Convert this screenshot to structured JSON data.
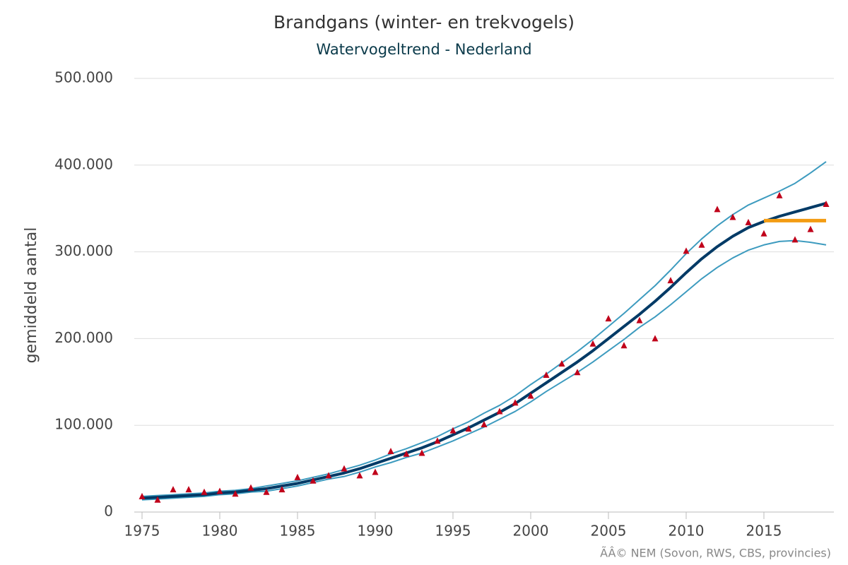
{
  "chart_data": {
    "type": "line",
    "title": "Brandgans (winter- en trekvogels)",
    "subtitle": "Watervogeltrend - Nederland",
    "y_label": "gemiddeld aantal",
    "credit": "ÃÂ© NEM (Sovon, RWS, CBS, provincies)",
    "x": [
      1975,
      1976,
      1977,
      1978,
      1979,
      1980,
      1981,
      1982,
      1983,
      1984,
      1985,
      1986,
      1987,
      1988,
      1989,
      1990,
      1991,
      1992,
      1993,
      1994,
      1995,
      1996,
      1997,
      1998,
      1999,
      2000,
      2001,
      2002,
      2003,
      2004,
      2005,
      2006,
      2007,
      2008,
      2009,
      2010,
      2011,
      2012,
      2013,
      2014,
      2015,
      2016,
      2017,
      2018,
      2019
    ],
    "xlim": [
      1974.5,
      2019.5
    ],
    "xticks": [
      1975,
      1980,
      1985,
      1990,
      1995,
      2000,
      2005,
      2010,
      2015
    ],
    "ylim": [
      0,
      500000
    ],
    "yticks": [
      0,
      {
        "value": 100000,
        "label": "100.000"
      },
      {
        "value": 200000,
        "label": "200.000"
      },
      {
        "value": 300000,
        "label": "300.000"
      },
      {
        "value": 400000,
        "label": "400.000"
      },
      {
        "value": 500000,
        "label": "500.000"
      }
    ],
    "grid": true,
    "series": [
      {
        "color": "#3d9bbf",
        "line_width": 2,
        "values": [
          18000,
          19000,
          20000,
          21000,
          22000,
          24000,
          25000,
          27000,
          30000,
          33000,
          36000,
          40000,
          44000,
          49000,
          54000,
          60000,
          67000,
          73000,
          80000,
          87000,
          96000,
          104000,
          114000,
          123000,
          134000,
          147000,
          159000,
          172000,
          185000,
          199000,
          214000,
          229000,
          245000,
          261000,
          279000,
          298000,
          315000,
          330000,
          343000,
          354000,
          362000,
          370000,
          379000,
          391000,
          404000
        ]
      },
      {
        "color": "#3d9bbf",
        "line_width": 2,
        "values": [
          14000,
          15000,
          16000,
          17000,
          18000,
          20000,
          21000,
          23000,
          24000,
          27000,
          30000,
          34000,
          38000,
          41000,
          46000,
          52000,
          57000,
          63000,
          68000,
          75000,
          82000,
          90000,
          98000,
          107000,
          116000,
          127000,
          139000,
          150000,
          161000,
          173000,
          186000,
          199000,
          213000,
          225000,
          239000,
          254000,
          269000,
          282000,
          293000,
          302000,
          308000,
          312000,
          313000,
          311000,
          308000
        ]
      },
      {
        "color": "#003a66",
        "line_width": 4,
        "values": [
          16000,
          17000,
          18000,
          19000,
          20000,
          22000,
          23000,
          25000,
          27000,
          30000,
          33000,
          37000,
          41000,
          45000,
          50000,
          56000,
          62000,
          68000,
          74000,
          81000,
          89000,
          97000,
          106000,
          115000,
          125000,
          137000,
          149000,
          161000,
          173000,
          186000,
          200000,
          214000,
          228000,
          243000,
          259000,
          276000,
          292000,
          306000,
          318000,
          328000,
          335000,
          341000,
          346000,
          351000,
          356000
        ]
      },
      {
        "color": "#f39c12",
        "line_width": 5,
        "values": [
          null,
          null,
          null,
          null,
          null,
          null,
          null,
          null,
          null,
          null,
          null,
          null,
          null,
          null,
          null,
          null,
          null,
          null,
          null,
          null,
          null,
          null,
          null,
          null,
          null,
          null,
          null,
          null,
          null,
          null,
          null,
          null,
          null,
          null,
          null,
          null,
          null,
          null,
          null,
          null,
          336000,
          336000,
          336000,
          336000,
          336000
        ]
      },
      {
        "color": "#c0001a",
        "marker": "triangle",
        "values": [
          18000,
          14000,
          26000,
          26000,
          23000,
          24000,
          21000,
          28000,
          23000,
          26000,
          40000,
          36000,
          42000,
          50000,
          42000,
          46000,
          70000,
          67000,
          68000,
          82000,
          94000,
          96000,
          101000,
          116000,
          126000,
          134000,
          158000,
          171000,
          161000,
          194000,
          223000,
          192000,
          221000,
          200000,
          267000,
          301000,
          308000,
          349000,
          340000,
          334000,
          321000,
          365000,
          314000,
          326000,
          355000
        ]
      }
    ]
  }
}
